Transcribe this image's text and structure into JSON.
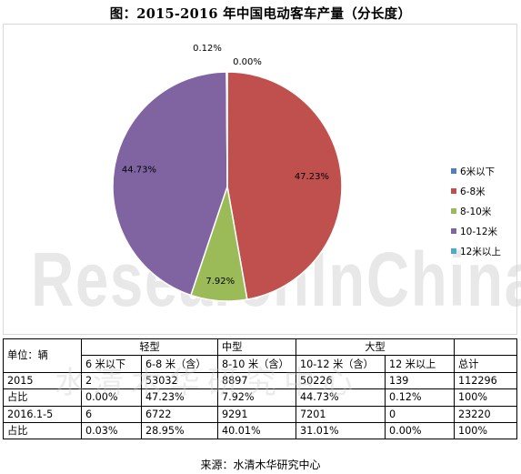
{
  "title": "图：2015-2016 年中国电动客车产量（分长度）",
  "watermark": "ResearchInChina",
  "watermark_cn": "水清木华研究中心",
  "chart_data": {
    "type": "pie",
    "start": "12 o'clock",
    "direction": "clockwise",
    "slices": [
      {
        "label": "6米以下",
        "value": 0.0,
        "label_text": "0.00%",
        "color": "#4f81bd"
      },
      {
        "label": "6-8米",
        "value": 47.23,
        "label_text": "47.23%",
        "color": "#c0504d"
      },
      {
        "label": "8-10米",
        "value": 7.92,
        "label_text": "7.92%",
        "color": "#9bbb59"
      },
      {
        "label": "10-12米",
        "value": 44.73,
        "label_text": "44.73%",
        "color": "#8064a2"
      },
      {
        "label": "12米以上",
        "value": 0.12,
        "label_text": "0.12%",
        "color": "#4bacc6"
      }
    ],
    "legend_placement": "right"
  },
  "table": {
    "header1": {
      "unit": "单位：辆",
      "light": "轻型",
      "medium": "中型",
      "large": "大型",
      "blank": ""
    },
    "header2": [
      "6 米以下",
      "6-8 米（含）",
      "8-10 米（含）",
      "10-12 米（含）",
      "12 米以上",
      "总计"
    ],
    "rows": [
      [
        "2015",
        "2",
        "53032",
        "8897",
        "50226",
        "139",
        "112296"
      ],
      [
        "占比",
        "0.00%",
        "47.23%",
        "7.92%",
        "44.73%",
        "0.12%",
        "100%"
      ],
      [
        "2016.1-5",
        "6",
        "6722",
        "9291",
        "7201",
        "0",
        "23220"
      ],
      [
        "占比",
        "0.03%",
        "28.95%",
        "40.01%",
        "31.01%",
        "0.00%",
        "100%"
      ]
    ]
  },
  "source": "来源：水清木华研究中心"
}
